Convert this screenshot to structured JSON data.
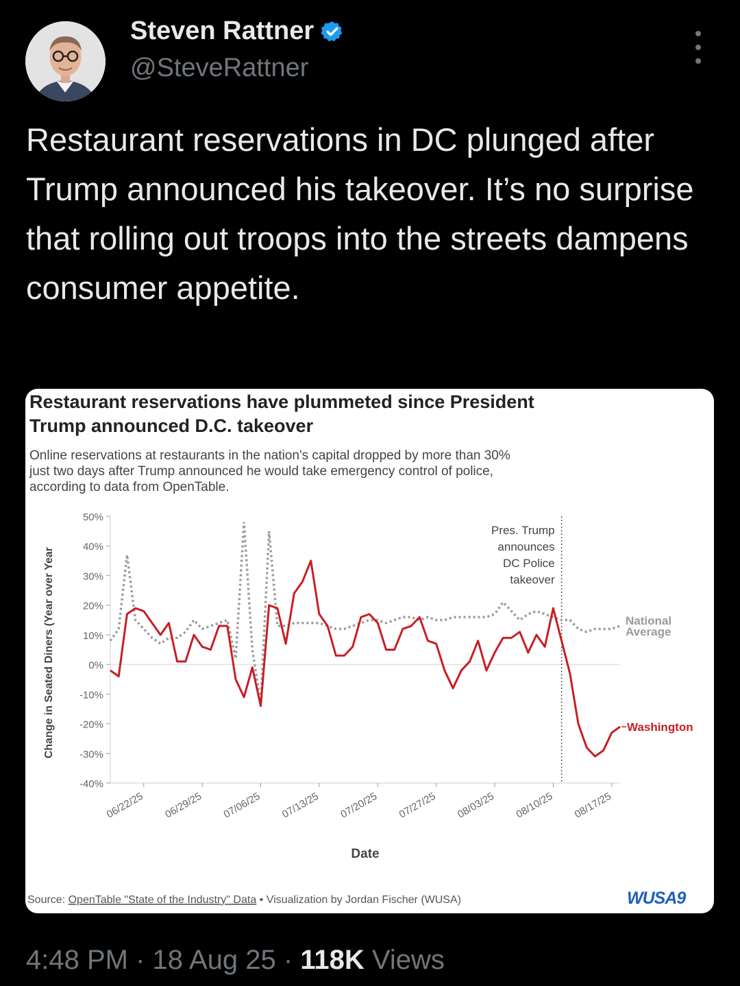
{
  "tweet": {
    "author_name": "Steven Rattner",
    "handle": "@SteveRattner",
    "text": "Restaurant reservations in DC plunged after Trump announced his takeover. It’s no surprise that rolling out troops into the streets dampens consumer appetite.",
    "time": "4:48 PM",
    "date": "18 Aug 25",
    "views_count": "118K",
    "views_label": "Views",
    "separator": "·"
  },
  "colors": {
    "accent_blue": "#1d9bf0",
    "washington": "#c81e25",
    "national": "#9a9a9a",
    "wusa_blue": "#1f5fb8"
  },
  "chart_data": {
    "type": "line",
    "title": "Restaurant reservations have plummeted since President Trump announced D.C. takeover",
    "title_lines": [
      "Restaurant reservations have plummeted since President",
      "Trump announced D.C. takeover"
    ],
    "subtitle": "Online reservations at restaurants in the nation's capital dropped by more than 30% just two days after Trump announced he would take emergency control of police, according to data from OpenTable.",
    "subtitle_lines": [
      "Online reservations at restaurants in the nation's capital dropped by more than 30%",
      "just two days after Trump announced he would take emergency control of police,",
      "according to data from OpenTable."
    ],
    "xlabel": "Date",
    "ylabel": "Change in Seated Diners (Year over Year",
    "ylim": [
      -40,
      50
    ],
    "xlim": [
      "2025-06-18",
      "2025-08-18"
    ],
    "y_ticks": [
      "50%",
      "40%",
      "30%",
      "20%",
      "10%",
      "0%",
      "-10%",
      "-20%",
      "-30%",
      "-40%"
    ],
    "x_ticks": [
      "06/22/25",
      "06/29/25",
      "07/06/25",
      "07/13/25",
      "07/20/25",
      "07/27/25",
      "08/03/25",
      "08/10/25",
      "08/17/25"
    ],
    "annotation": {
      "date": "2025-08-11",
      "lines": [
        "Pres. Trump",
        "announces",
        "DC Police",
        "takeover"
      ]
    },
    "legend": "direct labels at line ends",
    "series": [
      {
        "name": "Washington",
        "label": "Washington",
        "style": "solid",
        "points": [
          [
            "2025-06-18",
            -2
          ],
          [
            "2025-06-19",
            -4
          ],
          [
            "2025-06-20",
            17
          ],
          [
            "2025-06-21",
            19
          ],
          [
            "2025-06-22",
            18
          ],
          [
            "2025-06-23",
            14
          ],
          [
            "2025-06-24",
            10
          ],
          [
            "2025-06-25",
            14
          ],
          [
            "2025-06-26",
            1
          ],
          [
            "2025-06-27",
            1
          ],
          [
            "2025-06-28",
            10
          ],
          [
            "2025-06-29",
            6
          ],
          [
            "2025-06-30",
            5
          ],
          [
            "2025-07-01",
            13
          ],
          [
            "2025-07-02",
            13
          ],
          [
            "2025-07-03",
            -5
          ],
          [
            "2025-07-04",
            -11
          ],
          [
            "2025-07-05",
            -1
          ],
          [
            "2025-07-06",
            -14
          ],
          [
            "2025-07-07",
            20
          ],
          [
            "2025-07-08",
            19
          ],
          [
            "2025-07-09",
            7
          ],
          [
            "2025-07-10",
            24
          ],
          [
            "2025-07-11",
            28
          ],
          [
            "2025-07-12",
            35
          ],
          [
            "2025-07-13",
            17
          ],
          [
            "2025-07-14",
            13
          ],
          [
            "2025-07-15",
            3
          ],
          [
            "2025-07-16",
            3
          ],
          [
            "2025-07-17",
            6
          ],
          [
            "2025-07-18",
            16
          ],
          [
            "2025-07-19",
            17
          ],
          [
            "2025-07-20",
            14
          ],
          [
            "2025-07-21",
            5
          ],
          [
            "2025-07-22",
            5
          ],
          [
            "2025-07-23",
            12
          ],
          [
            "2025-07-24",
            13
          ],
          [
            "2025-07-25",
            16
          ],
          [
            "2025-07-26",
            8
          ],
          [
            "2025-07-27",
            7
          ],
          [
            "2025-07-28",
            -2
          ],
          [
            "2025-07-29",
            -8
          ],
          [
            "2025-07-30",
            -2
          ],
          [
            "2025-07-31",
            1
          ],
          [
            "2025-08-01",
            8
          ],
          [
            "2025-08-02",
            -2
          ],
          [
            "2025-08-03",
            4
          ],
          [
            "2025-08-04",
            9
          ],
          [
            "2025-08-05",
            9
          ],
          [
            "2025-08-06",
            11
          ],
          [
            "2025-08-07",
            4
          ],
          [
            "2025-08-08",
            10
          ],
          [
            "2025-08-09",
            6
          ],
          [
            "2025-08-10",
            19
          ],
          [
            "2025-08-11",
            8
          ],
          [
            "2025-08-12",
            -3
          ],
          [
            "2025-08-13",
            -20
          ],
          [
            "2025-08-14",
            -28
          ],
          [
            "2025-08-15",
            -31
          ],
          [
            "2025-08-16",
            -29
          ],
          [
            "2025-08-17",
            -23
          ],
          [
            "2025-08-18",
            -21
          ]
        ]
      },
      {
        "name": "National Average",
        "label_lines": [
          "National",
          "Average"
        ],
        "style": "dotted",
        "points": [
          [
            "2025-06-18",
            8
          ],
          [
            "2025-06-19",
            12
          ],
          [
            "2025-06-20",
            37
          ],
          [
            "2025-06-21",
            15
          ],
          [
            "2025-06-22",
            12
          ],
          [
            "2025-06-23",
            9
          ],
          [
            "2025-06-24",
            7
          ],
          [
            "2025-06-25",
            9
          ],
          [
            "2025-06-26",
            9
          ],
          [
            "2025-06-27",
            11
          ],
          [
            "2025-06-28",
            15
          ],
          [
            "2025-06-29",
            12
          ],
          [
            "2025-06-30",
            13
          ],
          [
            "2025-07-01",
            14
          ],
          [
            "2025-07-02",
            15
          ],
          [
            "2025-07-03",
            2
          ],
          [
            "2025-07-04",
            48
          ],
          [
            "2025-07-05",
            5
          ],
          [
            "2025-07-06",
            -13
          ],
          [
            "2025-07-07",
            45
          ],
          [
            "2025-07-08",
            13
          ],
          [
            "2025-07-09",
            13
          ],
          [
            "2025-07-10",
            14
          ],
          [
            "2025-07-11",
            14
          ],
          [
            "2025-07-12",
            14
          ],
          [
            "2025-07-13",
            14
          ],
          [
            "2025-07-14",
            13
          ],
          [
            "2025-07-15",
            12
          ],
          [
            "2025-07-16",
            12
          ],
          [
            "2025-07-17",
            13
          ],
          [
            "2025-07-18",
            14
          ],
          [
            "2025-07-19",
            15
          ],
          [
            "2025-07-20",
            15
          ],
          [
            "2025-07-21",
            14
          ],
          [
            "2025-07-22",
            15
          ],
          [
            "2025-07-23",
            16
          ],
          [
            "2025-07-24",
            16
          ],
          [
            "2025-07-25",
            15
          ],
          [
            "2025-07-26",
            16
          ],
          [
            "2025-07-27",
            15
          ],
          [
            "2025-07-28",
            15
          ],
          [
            "2025-07-29",
            16
          ],
          [
            "2025-07-30",
            16
          ],
          [
            "2025-07-31",
            16
          ],
          [
            "2025-08-01",
            16
          ],
          [
            "2025-08-02",
            16
          ],
          [
            "2025-08-03",
            17
          ],
          [
            "2025-08-04",
            21
          ],
          [
            "2025-08-05",
            18
          ],
          [
            "2025-08-06",
            15
          ],
          [
            "2025-08-07",
            17
          ],
          [
            "2025-08-08",
            18
          ],
          [
            "2025-08-09",
            17
          ],
          [
            "2025-08-10",
            16
          ],
          [
            "2025-08-11",
            15
          ],
          [
            "2025-08-12",
            15
          ],
          [
            "2025-08-13",
            12
          ],
          [
            "2025-08-14",
            11
          ],
          [
            "2025-08-15",
            12
          ],
          [
            "2025-08-16",
            12
          ],
          [
            "2025-08-17",
            12
          ],
          [
            "2025-08-18",
            13
          ]
        ]
      }
    ],
    "source_prefix": "Source: ",
    "source_link": "OpenTable \"State of the Industry\" Data",
    "source_suffix": " • Visualization by Jordan Fischer (WUSA)",
    "logo_text": "WUSA9"
  }
}
